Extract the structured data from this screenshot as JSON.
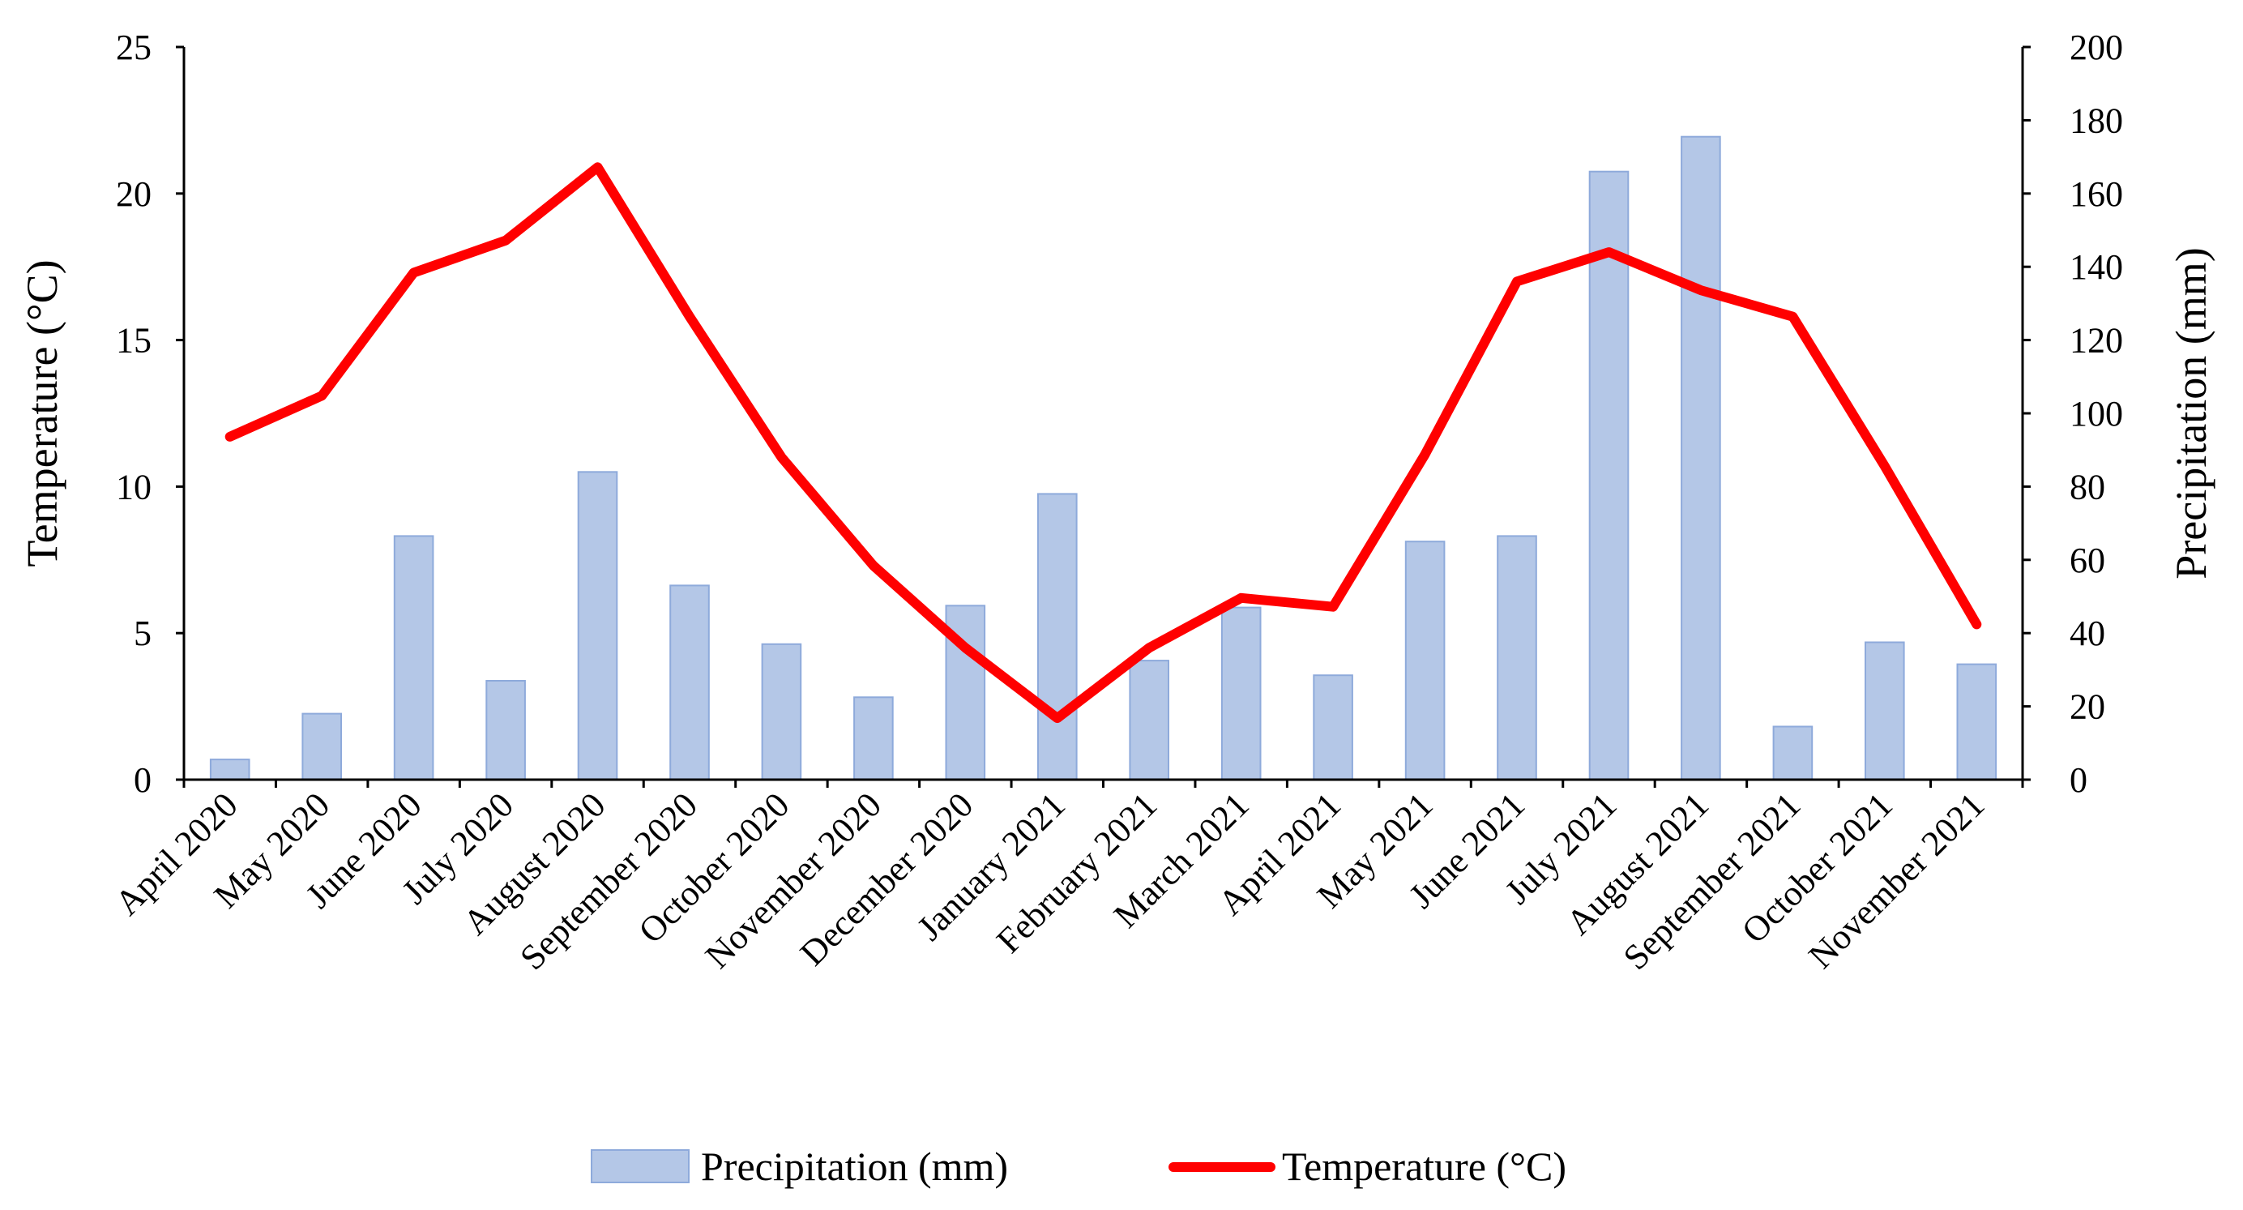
{
  "chart_data": {
    "type": "bar-line",
    "categories": [
      "April 2020",
      "May 2020",
      "June 2020",
      "July 2020",
      "August 2020",
      "September 2020",
      "October 2020",
      "November 2020",
      "December 2020",
      "January 2021",
      "February 2021",
      "March 2021",
      "April 2021",
      "May 2021",
      "June 2021",
      "July 2021",
      "August 2021",
      "September 2021",
      "October 2021",
      "November 2021"
    ],
    "series": [
      {
        "name": "Precipitation (mm)",
        "type": "bar",
        "axis": "right",
        "color": "#b4c7e7",
        "values": [
          5.5,
          18,
          66.5,
          27,
          84,
          53,
          37,
          22.5,
          47.5,
          78,
          32.5,
          47,
          28.5,
          65,
          66.5,
          166,
          175.5,
          14.5,
          37.5,
          31.5
        ]
      },
      {
        "name": "Temperature (°C)",
        "type": "line",
        "axis": "left",
        "color": "#ff0000",
        "values": [
          11.7,
          13.1,
          17.3,
          18.4,
          20.9,
          15.8,
          11.0,
          7.3,
          4.5,
          2.1,
          4.5,
          6.2,
          5.9,
          11.1,
          17.0,
          18.0,
          16.7,
          15.8,
          10.7,
          5.3
        ]
      }
    ],
    "ylabel_left": "Temperature (°C)",
    "ylabel_right": "Precipitation (mm)",
    "ylim_left": [
      0,
      25
    ],
    "yticks_left": [
      0,
      5,
      10,
      15,
      20,
      25
    ],
    "ylim_right": [
      0,
      200
    ],
    "yticks_right": [
      0,
      20,
      40,
      60,
      80,
      100,
      120,
      140,
      160,
      180,
      200
    ],
    "grid": false,
    "legend_position": "bottom"
  }
}
